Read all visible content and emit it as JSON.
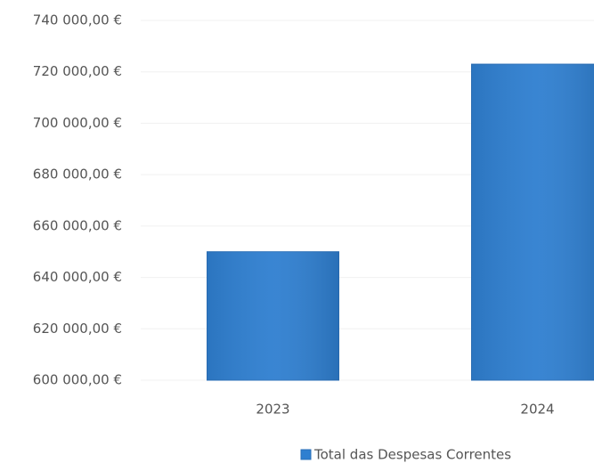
{
  "chart_data": {
    "type": "bar",
    "categories": [
      "2023",
      "2024"
    ],
    "series": [
      {
        "name": "Total das Despesas Correntes",
        "color": "#2f7fd0",
        "values": [
          650000,
          723000
        ]
      }
    ],
    "ylim": [
      600000,
      740000
    ],
    "yticks": [
      {
        "value": 600000,
        "label": "600 000,00 €"
      },
      {
        "value": 620000,
        "label": "620 000,00 €"
      },
      {
        "value": 640000,
        "label": "640 000,00 €"
      },
      {
        "value": 660000,
        "label": "660 000,00 €"
      },
      {
        "value": 680000,
        "label": "680 000,00 €"
      },
      {
        "value": 700000,
        "label": "700 000,00 €"
      },
      {
        "value": 720000,
        "label": "720 000,00 €"
      },
      {
        "value": 740000,
        "label": "740 000,00 €"
      }
    ],
    "grid": true,
    "legend": "bottom"
  }
}
